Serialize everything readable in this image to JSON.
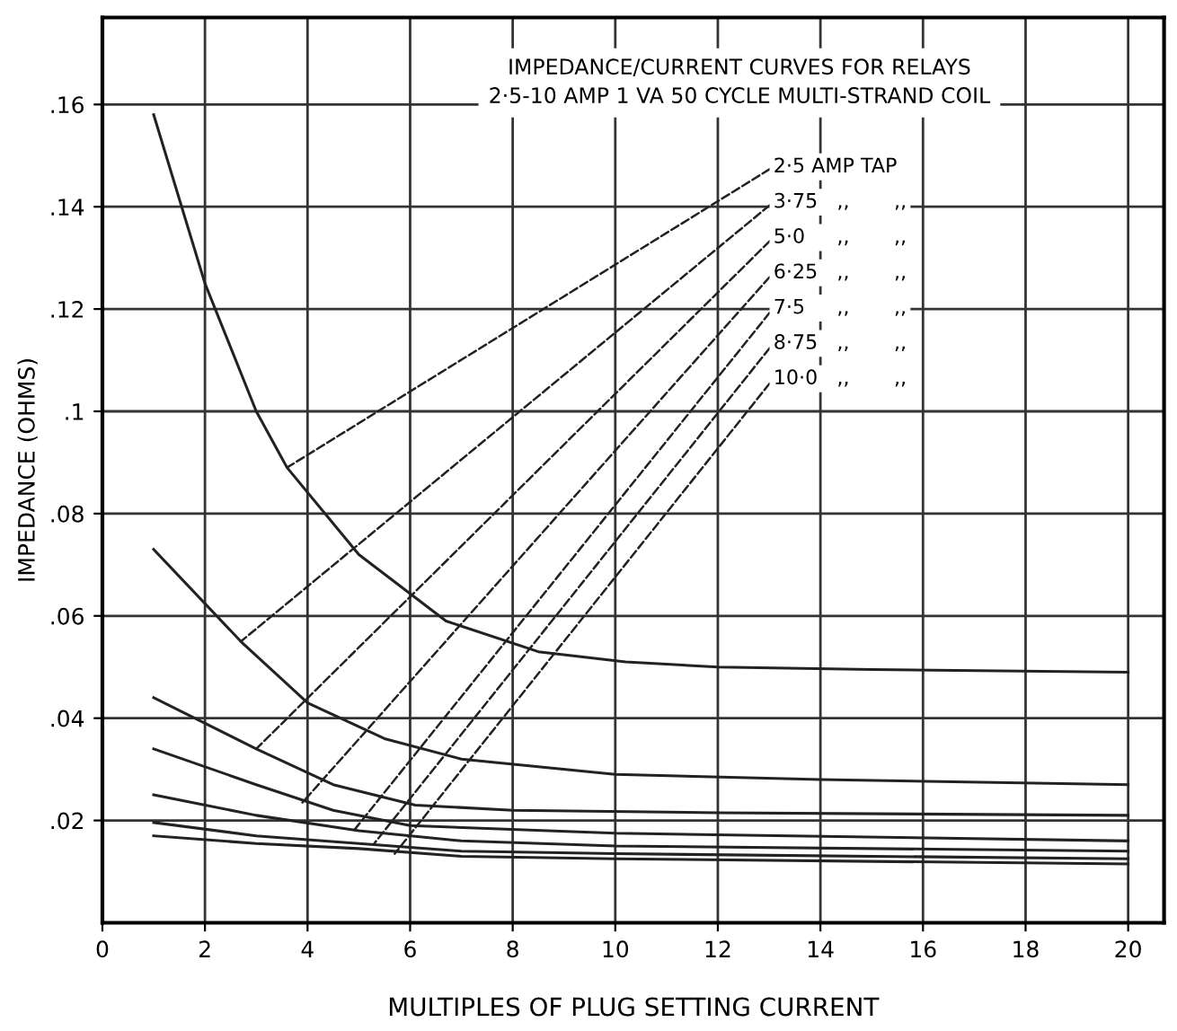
{
  "chart_data": {
    "type": "line",
    "title": "IMPEDANCE/CURRENT CURVES FOR RELAYS",
    "subtitle": "2·5-10 AMP 1 VA 50 CYCLE MULTI-STRAND COIL",
    "xlabel": "MULTIPLES OF PLUG SETTING CURRENT",
    "ylabel": "IMPEDANCE (OHMS)",
    "xlim": [
      0,
      20.7
    ],
    "ylim": [
      0,
      0.177
    ],
    "xticks": [
      0,
      2,
      4,
      6,
      8,
      10,
      12,
      14,
      16,
      18,
      20
    ],
    "yticks": [
      {
        "value": 0.02,
        "label": ".02"
      },
      {
        "value": 0.04,
        "label": ".04"
      },
      {
        "value": 0.06,
        "label": ".06"
      },
      {
        "value": 0.08,
        "label": ".08"
      },
      {
        "value": 0.1,
        "label": ".1"
      },
      {
        "value": 0.12,
        "label": ".12"
      },
      {
        "value": 0.14,
        "label": ".14"
      },
      {
        "value": 0.16,
        "label": ".16"
      }
    ],
    "grid": true,
    "line_style": "solid",
    "marker": "none",
    "series": [
      {
        "color": "#222222",
        "x": [
          1,
          2,
          3,
          3.6,
          5,
          6.7,
          8.5,
          10.2,
          12,
          15,
          20
        ],
        "values": [
          0.158,
          0.125,
          0.1,
          0.089,
          0.072,
          0.059,
          0.053,
          0.051,
          0.05,
          0.0495,
          0.049
        ]
      },
      {
        "color": "#222222",
        "x": [
          1,
          2.7,
          4,
          5.5,
          7,
          10,
          14,
          20
        ],
        "values": [
          0.073,
          0.055,
          0.043,
          0.036,
          0.032,
          0.029,
          0.028,
          0.027
        ]
      },
      {
        "color": "#222222",
        "x": [
          1,
          3,
          4.5,
          6.1,
          8,
          12,
          20
        ],
        "values": [
          0.044,
          0.034,
          0.027,
          0.023,
          0.022,
          0.0215,
          0.021
        ]
      },
      {
        "color": "#222222",
        "x": [
          1,
          3,
          4.5,
          6,
          10,
          20
        ],
        "values": [
          0.034,
          0.027,
          0.022,
          0.019,
          0.0175,
          0.016
        ]
      },
      {
        "color": "#222222",
        "x": [
          1,
          3,
          5,
          7,
          10,
          20
        ],
        "values": [
          0.025,
          0.021,
          0.018,
          0.016,
          0.015,
          0.014
        ]
      },
      {
        "color": "#222222",
        "x": [
          1,
          3,
          5,
          7,
          10,
          20
        ],
        "values": [
          0.0196,
          0.017,
          0.0155,
          0.014,
          0.0135,
          0.0125
        ]
      },
      {
        "color": "#222222",
        "x": [
          1,
          3,
          5,
          7,
          10,
          20
        ],
        "values": [
          0.017,
          0.0155,
          0.0145,
          0.013,
          0.0125,
          0.0115
        ]
      }
    ],
    "annotations": [
      {
        "text": "2·5 AMP TAP",
        "x": 3.6,
        "y": 0.089
      },
      {
        "text": "3·75   ,,       ,,",
        "x": 2.7,
        "y": 0.055
      },
      {
        "text": "5·0     ,,       ,,",
        "x": 3,
        "y": 0.034
      },
      {
        "text": "6·25   ,,       ,,",
        "x": 3.9,
        "y": 0.0235
      },
      {
        "text": "7·5     ,,       ,,",
        "x": 4.9,
        "y": 0.018
      },
      {
        "text": "8·75   ,,       ,,",
        "x": 5.3,
        "y": 0.0155
      },
      {
        "text": "10·0   ,,       ,,",
        "x": 5.7,
        "y": 0.0135
      }
    ]
  }
}
